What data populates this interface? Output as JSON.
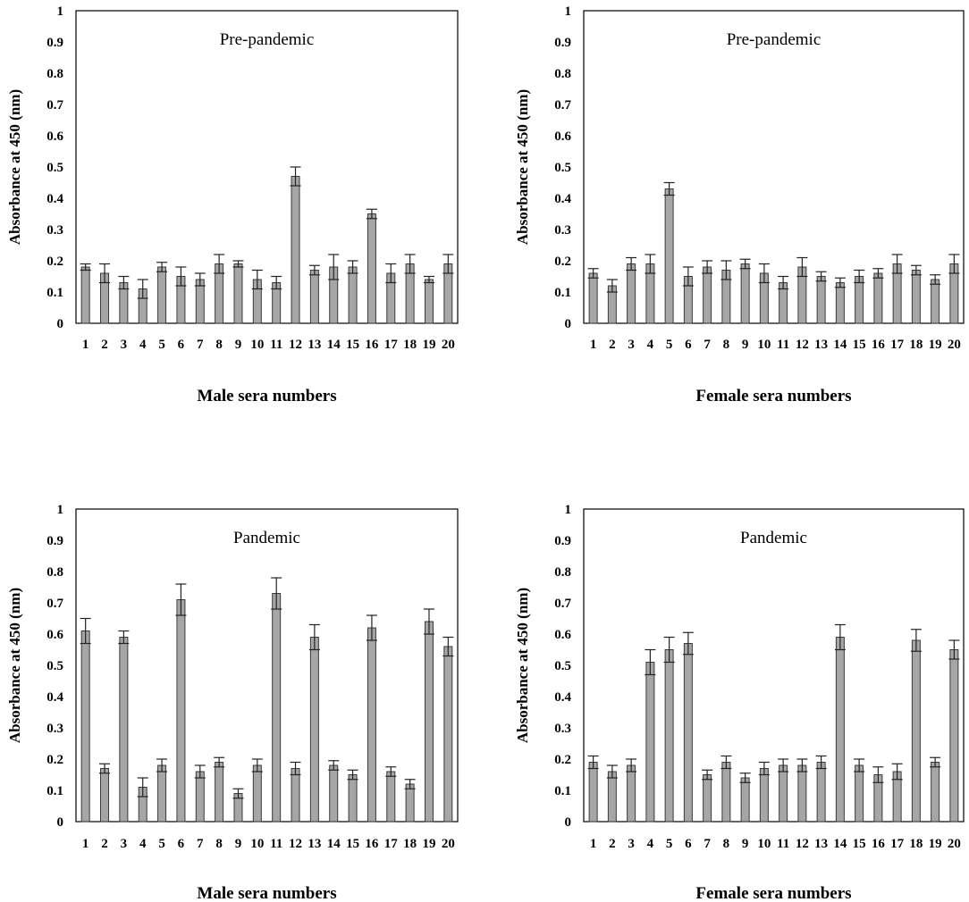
{
  "chart_data": [
    {
      "type": "bar",
      "title": "Pre-pandemic",
      "xlabel": "Male sera numbers",
      "ylabel": "Absorbance at 450 (nm)",
      "ylim": [
        0,
        1
      ],
      "yticks": [
        "0",
        "0.1",
        "0.2",
        "0.3",
        "0.4",
        "0.5",
        "0.6",
        "0.7",
        "0.8",
        "0.9",
        "1"
      ],
      "categories": [
        "1",
        "2",
        "3",
        "4",
        "5",
        "6",
        "7",
        "8",
        "9",
        "10",
        "11",
        "12",
        "13",
        "14",
        "15",
        "16",
        "17",
        "18",
        "19",
        "20"
      ],
      "values": [
        0.18,
        0.16,
        0.13,
        0.11,
        0.18,
        0.15,
        0.14,
        0.19,
        0.19,
        0.14,
        0.13,
        0.47,
        0.17,
        0.18,
        0.18,
        0.35,
        0.16,
        0.19,
        0.14,
        0.19
      ],
      "errors": [
        0.01,
        0.03,
        0.02,
        0.03,
        0.015,
        0.03,
        0.02,
        0.03,
        0.01,
        0.03,
        0.02,
        0.03,
        0.015,
        0.04,
        0.02,
        0.015,
        0.03,
        0.03,
        0.01,
        0.03
      ]
    },
    {
      "type": "bar",
      "title": "Pre-pandemic",
      "xlabel": "Female sera numbers",
      "ylabel": "Absorbance at 450 (nm)",
      "ylim": [
        0,
        1
      ],
      "yticks": [
        "0",
        "0.1",
        "0.2",
        "0.3",
        "0.4",
        "0.5",
        "0.6",
        "0.7",
        "0.8",
        "0.9",
        "1"
      ],
      "categories": [
        "1",
        "2",
        "3",
        "4",
        "5",
        "6",
        "7",
        "8",
        "9",
        "10",
        "11",
        "12",
        "13",
        "14",
        "15",
        "16",
        "17",
        "18",
        "19",
        "20"
      ],
      "values": [
        0.16,
        0.12,
        0.19,
        0.19,
        0.43,
        0.15,
        0.18,
        0.17,
        0.19,
        0.16,
        0.13,
        0.18,
        0.15,
        0.13,
        0.15,
        0.16,
        0.19,
        0.17,
        0.14,
        0.19
      ],
      "errors": [
        0.015,
        0.02,
        0.02,
        0.03,
        0.02,
        0.03,
        0.02,
        0.03,
        0.015,
        0.03,
        0.02,
        0.03,
        0.015,
        0.015,
        0.02,
        0.015,
        0.03,
        0.015,
        0.015,
        0.03
      ]
    },
    {
      "type": "bar",
      "title": "Pandemic",
      "xlabel": "Male sera numbers",
      "ylabel": "Absorbance at 450 (nm)",
      "ylim": [
        0,
        1
      ],
      "yticks": [
        "0",
        "0.1",
        "0.2",
        "0.3",
        "0.4",
        "0.5",
        "0.6",
        "0.7",
        "0.8",
        "0.9",
        "1"
      ],
      "categories": [
        "1",
        "2",
        "3",
        "4",
        "5",
        "6",
        "7",
        "8",
        "9",
        "10",
        "11",
        "12",
        "13",
        "14",
        "15",
        "16",
        "17",
        "18",
        "19",
        "20"
      ],
      "values": [
        0.61,
        0.17,
        0.59,
        0.11,
        0.18,
        0.71,
        0.16,
        0.19,
        0.09,
        0.18,
        0.73,
        0.17,
        0.59,
        0.18,
        0.15,
        0.62,
        0.16,
        0.12,
        0.64,
        0.56
      ],
      "errors": [
        0.04,
        0.015,
        0.02,
        0.03,
        0.02,
        0.05,
        0.02,
        0.015,
        0.015,
        0.02,
        0.05,
        0.02,
        0.04,
        0.015,
        0.015,
        0.04,
        0.015,
        0.015,
        0.04,
        0.03
      ]
    },
    {
      "type": "bar",
      "title": "Pandemic",
      "xlabel": "Female sera numbers",
      "ylabel": "Absorbance at 450 (nm)",
      "ylim": [
        0,
        1
      ],
      "yticks": [
        "0",
        "0.1",
        "0.2",
        "0.3",
        "0.4",
        "0.5",
        "0.6",
        "0.7",
        "0.8",
        "0.9",
        "1"
      ],
      "categories": [
        "1",
        "2",
        "3",
        "4",
        "5",
        "6",
        "7",
        "8",
        "9",
        "10",
        "11",
        "12",
        "13",
        "14",
        "15",
        "16",
        "17",
        "18",
        "19",
        "20"
      ],
      "values": [
        0.19,
        0.16,
        0.18,
        0.51,
        0.55,
        0.57,
        0.15,
        0.19,
        0.14,
        0.17,
        0.18,
        0.18,
        0.19,
        0.59,
        0.18,
        0.15,
        0.16,
        0.58,
        0.19,
        0.55
      ],
      "errors": [
        0.02,
        0.02,
        0.02,
        0.04,
        0.04,
        0.035,
        0.015,
        0.02,
        0.015,
        0.02,
        0.02,
        0.02,
        0.02,
        0.04,
        0.02,
        0.025,
        0.025,
        0.035,
        0.015,
        0.03
      ]
    }
  ]
}
